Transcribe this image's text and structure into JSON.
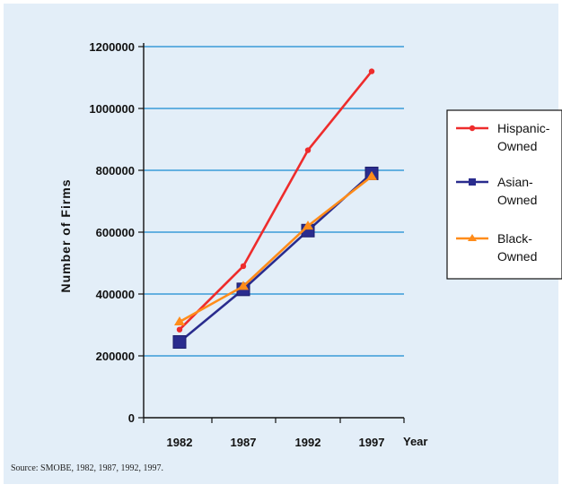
{
  "chart_data": {
    "type": "line",
    "x": [
      1982,
      1987,
      1992,
      1997
    ],
    "categories": [
      "1982",
      "1987",
      "1992",
      "1997"
    ],
    "xlabel": "Year",
    "ylabel": "Number of Firms",
    "ylim": [
      0,
      1200000
    ],
    "yticks": [
      "0",
      "200000",
      "400000",
      "600000",
      "800000",
      "1000000",
      "1200000"
    ],
    "grid": true,
    "legend": "right",
    "series": [
      {
        "name": "Hispanic-Owned",
        "values": [
          285000,
          490000,
          865000,
          1120000
        ],
        "color": "#ee2c2c",
        "marker": "dot"
      },
      {
        "name": "Asian-Owned",
        "values": [
          245000,
          415000,
          605000,
          790000
        ],
        "color": "#2a2c8e",
        "marker": "square"
      },
      {
        "name": "Black-Owned",
        "values": [
          310000,
          425000,
          620000,
          780000
        ],
        "color": "#ff8c1a",
        "marker": "triangle"
      }
    ],
    "legend_labels": [
      {
        "line1": "Hispanic-",
        "line2": "Owned"
      },
      {
        "line1": "Asian-",
        "line2": "Owned"
      },
      {
        "line1": "Black-",
        "line2": "Owned"
      }
    ],
    "source": "Source:  SMOBE, 1982, 1987, 1992, 1997."
  }
}
